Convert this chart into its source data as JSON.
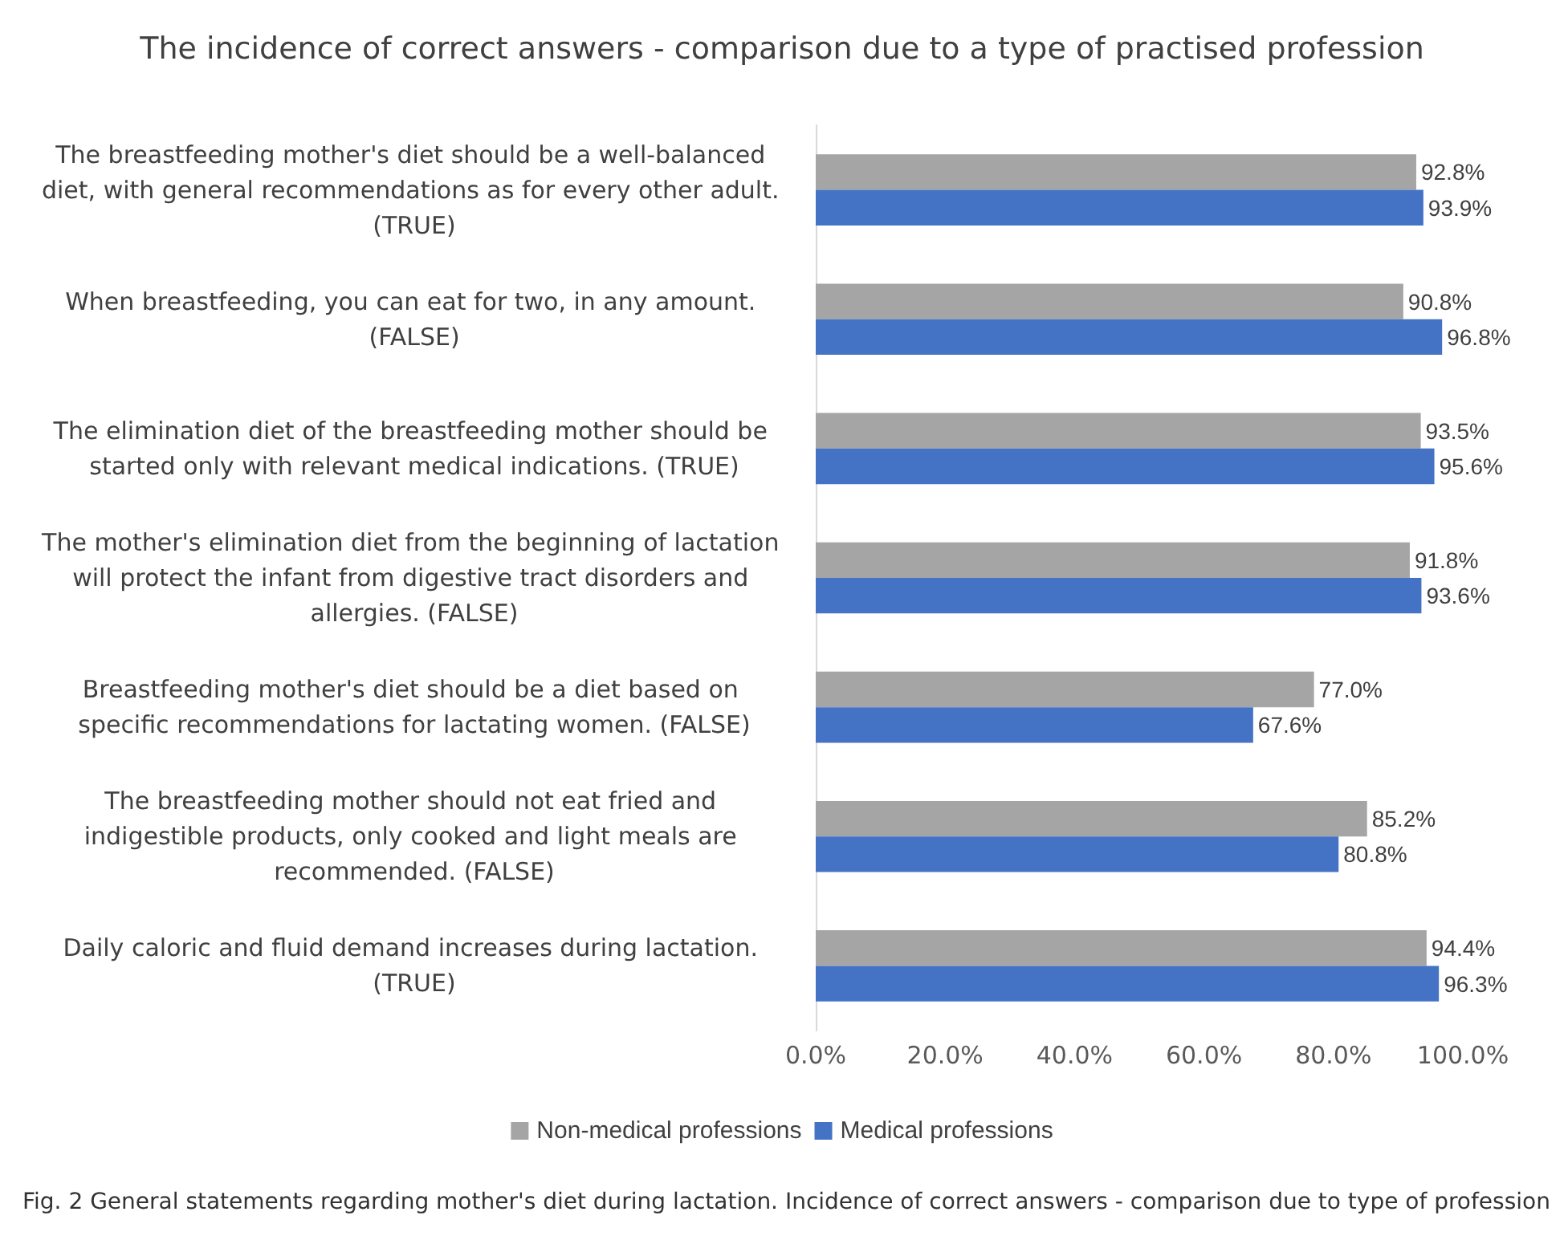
{
  "chart_data": {
    "type": "bar",
    "orientation": "horizontal",
    "title": "The incidence of correct answers - comparison due to a type of practised profession",
    "categories": [
      "The breastfeeding mother's diet should be a well-balanced diet, with general recommendations as for every other adult. (TRUE)",
      "When breastfeeding, you can eat for two, in any amount. (FALSE)",
      "The elimination diet of the breastfeeding mother should be started only with relevant medical indications. (TRUE)",
      "The mother's elimination diet from the beginning of lactation will protect the infant from digestive tract disorders and allergies. (FALSE)",
      "Breastfeeding mother's diet should be a diet based on specific recommendations for lactating women. (FALSE)",
      "The breastfeeding mother should not eat fried and indigestible products, only cooked and light meals are recommended. (FALSE)",
      "Daily caloric and fluid demand increases during lactation. (TRUE)"
    ],
    "series": [
      {
        "name": "Non-medical professions",
        "color": "#a5a5a5",
        "values": [
          92.8,
          90.8,
          93.5,
          91.8,
          77.0,
          85.2,
          94.4
        ],
        "value_labels": [
          "92.8%",
          "90.8%",
          "93.5%",
          "91.8%",
          "77.0%",
          "85.2%",
          "94.4%"
        ]
      },
      {
        "name": "Medical professions",
        "color": "#4472c4",
        "values": [
          93.9,
          96.8,
          95.6,
          93.6,
          67.6,
          80.8,
          96.3
        ],
        "value_labels": [
          "93.9%",
          "96.8%",
          "95.6%",
          "93.6%",
          "67.6%",
          "80.8%",
          "96.3%"
        ]
      }
    ],
    "xlim": [
      0,
      100
    ],
    "xticks": [
      {
        "value": 0,
        "label": "0.0%"
      },
      {
        "value": 20,
        "label": "20.0%"
      },
      {
        "value": 40,
        "label": "40.0%"
      },
      {
        "value": 60,
        "label": "60.0%"
      },
      {
        "value": 80,
        "label": "80.0%"
      },
      {
        "value": 100,
        "label": "100.0%"
      }
    ],
    "legend": "bottom",
    "annotations": [
      "Fig. 2 General statements regarding mother's diet during lactation. Incidence of correct answers - comparison due to type of profession"
    ]
  }
}
